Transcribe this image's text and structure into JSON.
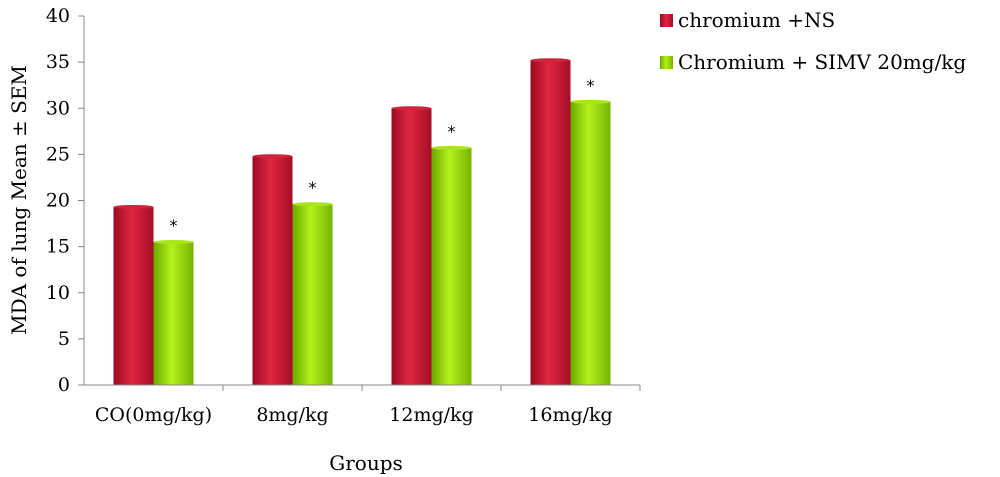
{
  "chart_data": {
    "type": "bar",
    "xlabel": "Groups",
    "ylabel": "MDA of lung Mean ± SEM",
    "ylim": [
      0,
      40
    ],
    "yticks": [
      0,
      5,
      10,
      15,
      20,
      25,
      30,
      35,
      40
    ],
    "categories": [
      "CO(0mg/kg)",
      "8mg/kg",
      "12mg/kg",
      "16mg/kg"
    ],
    "series": [
      {
        "name": "chromium +NS",
        "color": "#c8102e",
        "values": [
          19.3,
          24.8,
          30.0,
          35.2
        ]
      },
      {
        "name": "Chromium + SIMV 20mg/kg",
        "color": "#8fd400",
        "values": [
          15.5,
          19.6,
          25.7,
          30.7
        ]
      }
    ],
    "annotations": {
      "marker": "*",
      "series_index": 1
    },
    "legend_position": "top-right",
    "grid": false
  }
}
